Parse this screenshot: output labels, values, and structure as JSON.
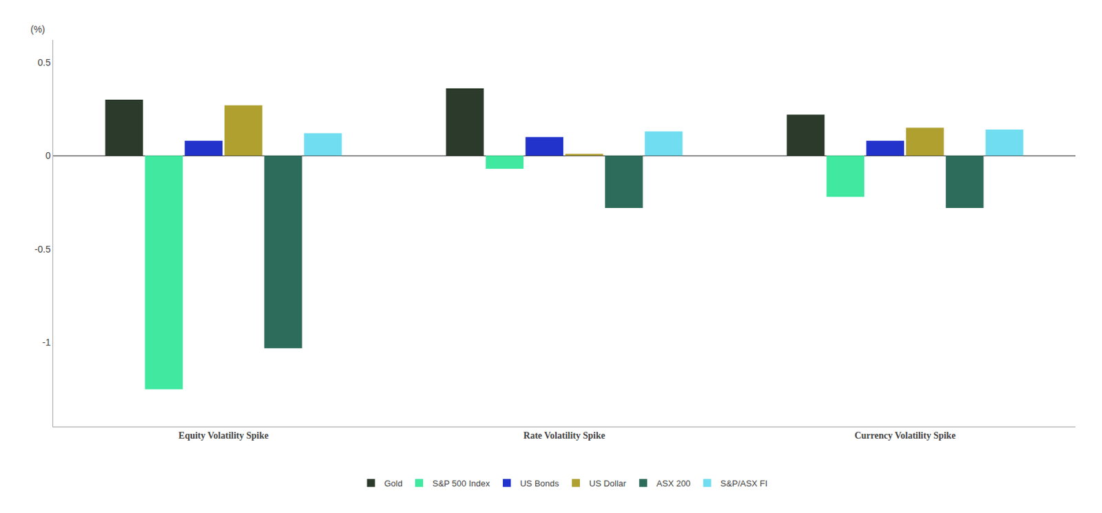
{
  "chart_data": {
    "type": "bar",
    "categories": [
      "Equity Volatility Spike",
      "Rate Volatility Spike",
      "Currency Volatility Spike"
    ],
    "series": [
      {
        "name": "Gold",
        "color": "#2b3a2b",
        "values": [
          0.3,
          0.36,
          0.22
        ]
      },
      {
        "name": "S&P 500 Index",
        "color": "#40e8a0",
        "values": [
          -1.25,
          -0.07,
          -0.22
        ]
      },
      {
        "name": "US Bonds",
        "color": "#2233cc",
        "values": [
          0.08,
          0.1,
          0.08
        ]
      },
      {
        "name": "US Dollar",
        "color": "#b0a030",
        "values": [
          0.27,
          0.01,
          0.15
        ]
      },
      {
        "name": "ASX 200",
        "color": "#2d6b5a",
        "values": [
          -1.03,
          -0.28,
          -0.28
        ]
      },
      {
        "name": "S&P/ASX FI",
        "color": "#70ddf0",
        "values": [
          0.12,
          0.13,
          0.14
        ]
      }
    ],
    "ylabel": "(%)",
    "ylim": [
      -1.45,
      0.62
    ],
    "yticks": [
      -1,
      -0.5,
      0,
      0.5
    ],
    "grid": false,
    "legend": "bottom"
  }
}
